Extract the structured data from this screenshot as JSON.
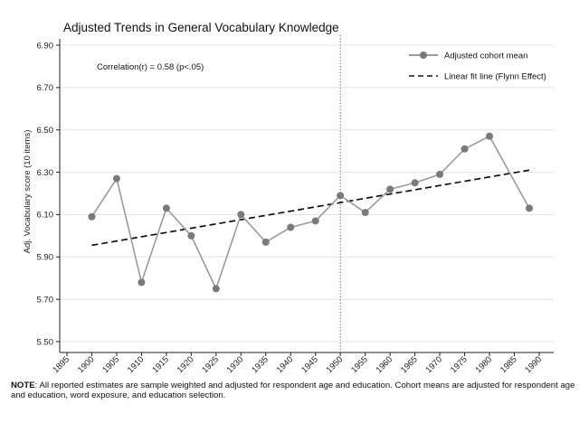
{
  "chart_data": {
    "type": "line",
    "title": "Adjusted Trends in General Vocabulary Knowledge",
    "xlabel": "",
    "ylabel": "Adj. Vocabulary score (10 items)",
    "xlim": [
      1895,
      1990
    ],
    "ylim": [
      5.5,
      6.9
    ],
    "x_ticks": [
      "1895",
      "1900",
      "1905",
      "1910",
      "1915",
      "1920",
      "1925",
      "1930",
      "1935",
      "1940",
      "1945",
      "1950",
      "1955",
      "1960",
      "1965",
      "1970",
      "1975",
      "1980",
      "1985",
      "1990"
    ],
    "y_ticks": [
      "5.50",
      "5.70",
      "5.90",
      "6.10",
      "6.30",
      "6.50",
      "6.70",
      "6.90"
    ],
    "grid": true,
    "reference_line_x": 1950,
    "annotation": "Correlation(r) = 0.58 (p<.05)",
    "legend_position": "top-right",
    "series": [
      {
        "name": "Adjusted cohort mean",
        "color": "#7a7a7a",
        "marker": "circle",
        "x": [
          1900,
          1905,
          1910,
          1915,
          1920,
          1925,
          1930,
          1935,
          1940,
          1945,
          1950,
          1955,
          1960,
          1965,
          1970,
          1975,
          1980,
          1988
        ],
        "y": [
          6.09,
          6.27,
          5.78,
          6.13,
          6.0,
          5.75,
          6.1,
          5.97,
          6.04,
          6.07,
          6.19,
          6.11,
          6.22,
          6.25,
          6.29,
          6.41,
          6.47,
          6.13
        ]
      },
      {
        "name": "Linear fit line (Flynn Effect)",
        "color": "#111111",
        "style": "dashed",
        "x": [
          1900,
          1988
        ],
        "y": [
          5.955,
          6.31
        ]
      }
    ]
  },
  "note": {
    "label": "NOTE",
    "text": ": All reported estimates are sample weighted and adjusted for respondent age and education. Cohort means are adjusted for respondent age and education, word exposure, and education selection."
  }
}
